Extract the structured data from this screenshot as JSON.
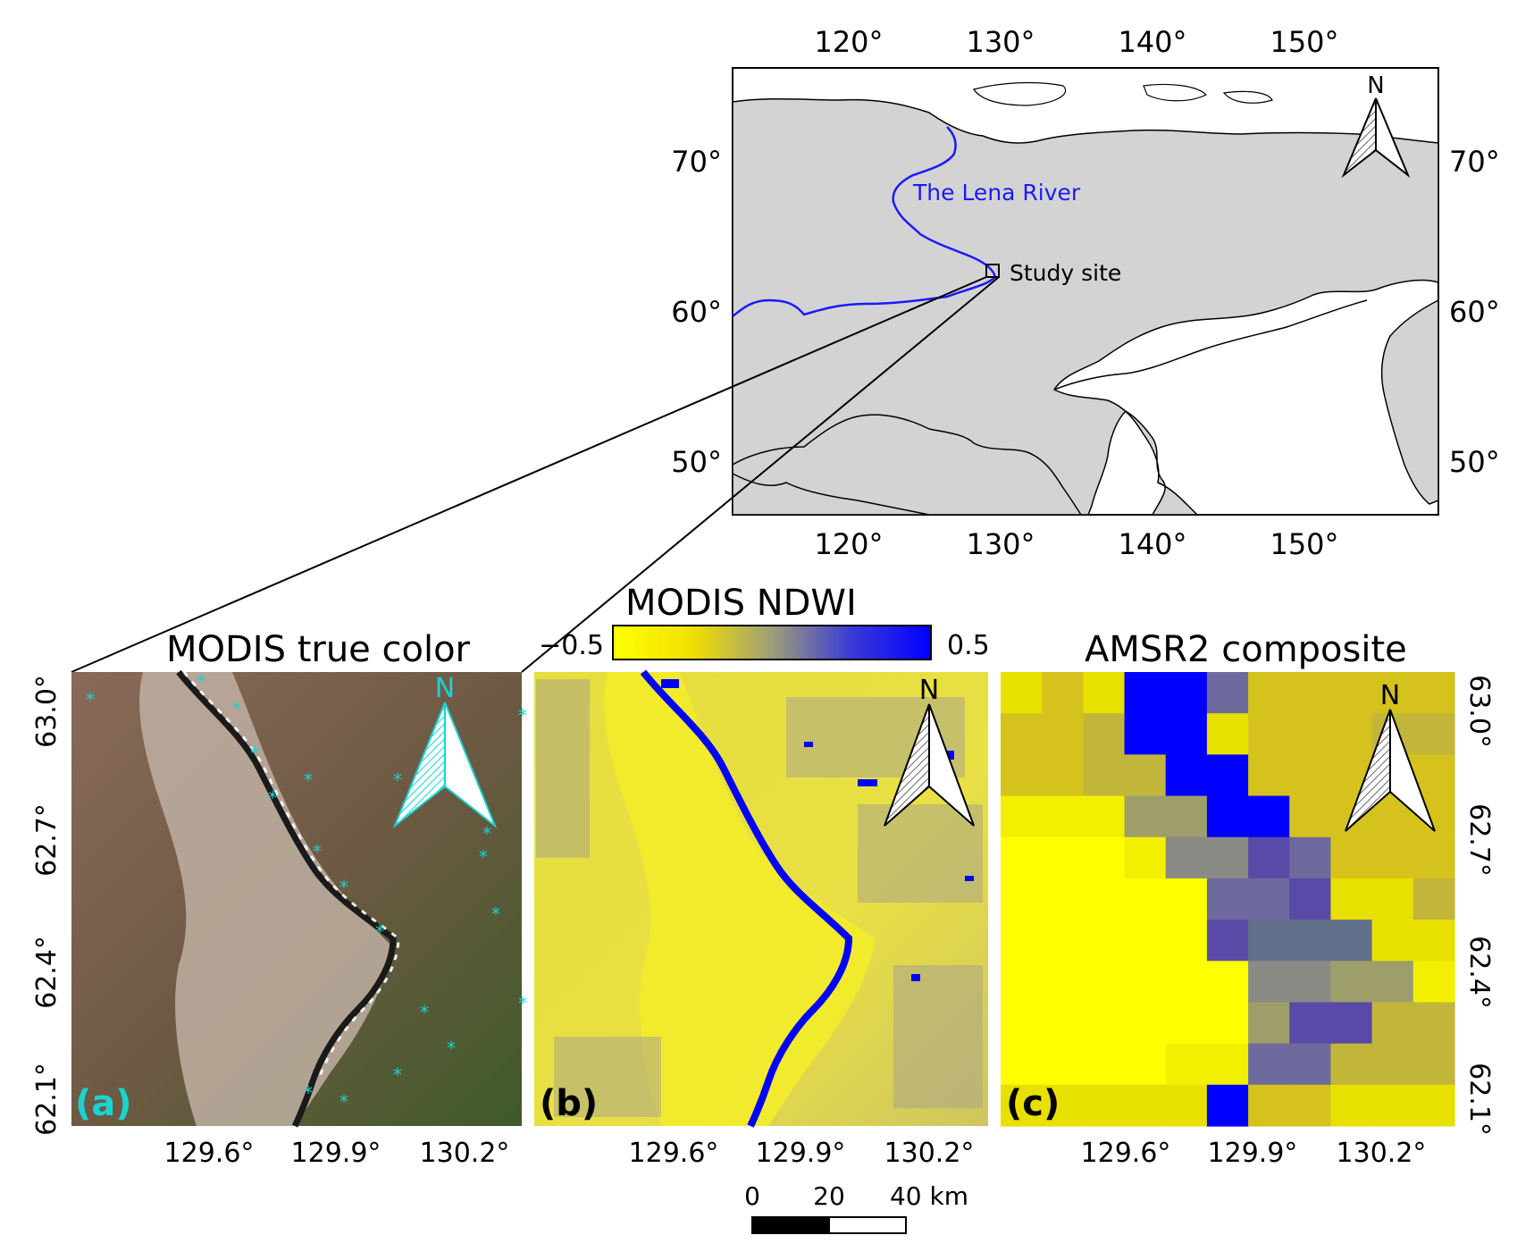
{
  "overview_map": {
    "top_lon_ticks": [
      "120°",
      "130°",
      "140°",
      "150°"
    ],
    "bottom_lon_ticks": [
      "120°",
      "130°",
      "140°",
      "150°"
    ],
    "left_lat_ticks": [
      "70°",
      "60°",
      "50°"
    ],
    "right_lat_ticks": [
      "70°",
      "60°",
      "50°"
    ],
    "river_label": "The Lena River",
    "site_label": "Study site",
    "north_label": "N",
    "colors": {
      "land": "#d3d3d3",
      "river": "#1a1aff",
      "border": "#000000"
    }
  },
  "panel_a": {
    "title": "MODIS true color",
    "tag": "(a)",
    "north_label": "N",
    "accent_color": "#19d3d3"
  },
  "panel_b": {
    "title": "MODIS NDWI",
    "tag": "(b)",
    "north_label": "N",
    "colorbar_min": "−0.5",
    "colorbar_max": "0.5",
    "colorbar_colors": [
      "#ffff00",
      "#9e9e7a",
      "#0000ff"
    ]
  },
  "panel_c": {
    "title": "AMSR2 composite",
    "tag": "(c)",
    "north_label": "N"
  },
  "inset_lat_ticks": [
    "63.0°",
    "62.7°",
    "62.4°",
    "62.1°"
  ],
  "inset_lon_ticks": [
    "129.6°",
    "129.9°",
    "130.2°"
  ],
  "scale_bar": {
    "labels": [
      "0",
      "20",
      "40 km"
    ]
  }
}
